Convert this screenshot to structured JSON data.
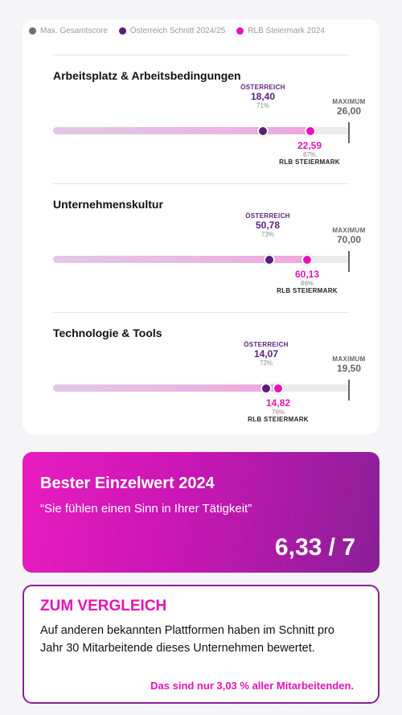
{
  "legend": [
    {
      "label": "Max. Gesamtscore",
      "color": "#6e6e6e"
    },
    {
      "label": "Österreich Schnitt 2024/25",
      "color": "#5b1e7c"
    },
    {
      "label": "RLB Steiermark 2024",
      "color": "#e413b7"
    }
  ],
  "labels": {
    "austria": "ÖSTERREICH",
    "maximum": "MAXIMUM",
    "rlb": "RLB STEIERMARK"
  },
  "sections": [
    {
      "title": "Arbeitsplatz & Arbeitsbedingungen",
      "austria_value": "18,40",
      "austria_pct": "71%",
      "max_value": "26,00",
      "rlb_value": "22,59",
      "rlb_pct": "87%",
      "austria_ratio": 0.71,
      "rlb_ratio": 0.87
    },
    {
      "title": "Unternehmenskultur",
      "austria_value": "50,78",
      "austria_pct": "73%",
      "max_value": "70,00",
      "rlb_value": "60,13",
      "rlb_pct": "86%",
      "austria_ratio": 0.73,
      "rlb_ratio": 0.86
    },
    {
      "title": "Technologie & Tools",
      "austria_value": "14,07",
      "austria_pct": "72%",
      "max_value": "19,50",
      "rlb_value": "14,82",
      "rlb_pct": "76%",
      "austria_ratio": 0.72,
      "rlb_ratio": 0.76
    }
  ],
  "best": {
    "title": "Bester Einzelwert 2024",
    "quote": "“Sie fühlen einen Sinn in Ihrer Tätigkeit”",
    "score": "6,33 / 7"
  },
  "compare": {
    "title": "ZUM VERGLEICH",
    "text": "Auf anderen bekannten Plattformen haben im Schnitt pro Jahr 30 Mitarbeitende dieses Unternehmen bewertet.",
    "footnote": "Das sind nur 3,03 % aller Mitarbeitenden."
  }
}
